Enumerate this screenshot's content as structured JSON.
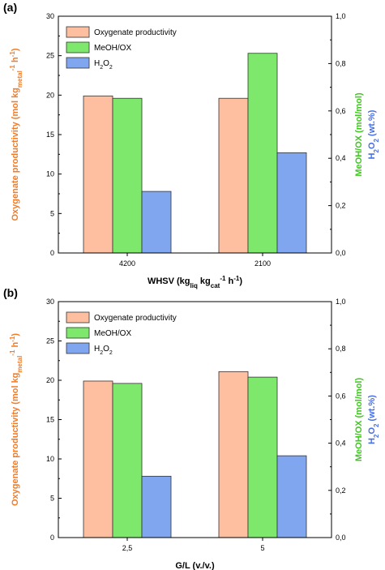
{
  "chart_data": [
    {
      "panel_label": "(a)",
      "type": "bar",
      "categories": [
        "4200",
        "2100"
      ],
      "xlabel": {
        "main": "WHSV (kg",
        "sub1": "liq",
        "mid1": " kg",
        "sub2": "cat",
        "sup": "-1",
        "tail": " h",
        "sup2": "-1",
        "close": ")"
      },
      "ylabel_left": {
        "main": "Oxygenate productivity (mol kg",
        "sub": "metal",
        "sup": "-1",
        "tail": " h",
        "sup2": "-1",
        "close": ")"
      },
      "ylabel_right_1": "MeOH/OX (mol/mol)",
      "ylabel_right_2": {
        "pre": "H",
        "sub1": "2",
        "mid": "O",
        "sub2": "2",
        "tail": " (wt.%)"
      },
      "left_ylim": [
        0,
        30
      ],
      "left_ticks": [
        "0",
        "5",
        "10",
        "15",
        "20",
        "25",
        "30"
      ],
      "right_ylim": [
        0,
        1.0
      ],
      "right_ticks": [
        "0,0",
        "0,2",
        "0,4",
        "0,6",
        "0,8",
        "1,0"
      ],
      "legend_position": "top-left",
      "series": [
        {
          "name": "Oxygenate productivity",
          "axis": "left",
          "color": "#fdbf9f",
          "values": [
            19.9,
            19.6
          ]
        },
        {
          "name": "MeOH/OX",
          "axis": "left",
          "color": "#7de86b",
          "values": [
            19.6,
            25.3
          ]
        },
        {
          "name_parts": {
            "pre": "H",
            "sub1": "2",
            "mid": "O",
            "sub2": "2"
          },
          "axis": "left",
          "color": "#7fa6ef",
          "values": [
            7.8,
            12.7
          ]
        }
      ]
    },
    {
      "panel_label": "(b)",
      "type": "bar",
      "categories": [
        "2,5",
        "5"
      ],
      "xlabel": {
        "main": "G/L (v./v.)"
      },
      "ylabel_left": {
        "main": "Oxygenate productivity (mol kg",
        "sub": "metal",
        "sup": "-1",
        "tail": " h",
        "sup2": "-1",
        "close": ")"
      },
      "ylabel_right_1": "MeOH/OX (mol/mol)",
      "ylabel_right_2": {
        "pre": "H",
        "sub1": "2",
        "mid": "O",
        "sub2": "2",
        "tail": " (wt.%)"
      },
      "left_ylim": [
        0,
        30
      ],
      "left_ticks": [
        "0",
        "5",
        "10",
        "15",
        "20",
        "25",
        "30"
      ],
      "right_ylim": [
        0,
        1.0
      ],
      "right_ticks": [
        "0,0",
        "0,2",
        "0,4",
        "0,6",
        "0,8",
        "1,0"
      ],
      "legend_position": "top-left",
      "series": [
        {
          "name": "Oxygenate productivity",
          "axis": "left",
          "color": "#fdbf9f",
          "values": [
            19.9,
            21.1
          ]
        },
        {
          "name": "MeOH/OX",
          "axis": "left",
          "color": "#7de86b",
          "values": [
            19.6,
            20.4
          ]
        },
        {
          "name_parts": {
            "pre": "H",
            "sub1": "2",
            "mid": "O",
            "sub2": "2"
          },
          "axis": "left",
          "color": "#7fa6ef",
          "values": [
            7.8,
            10.4
          ]
        }
      ]
    }
  ],
  "colors": {
    "ylabel_left": "#f07c2a",
    "ylabel_right_1": "#3ec81e",
    "ylabel_right_2": "#4a6fe0",
    "axis": "#000000"
  }
}
